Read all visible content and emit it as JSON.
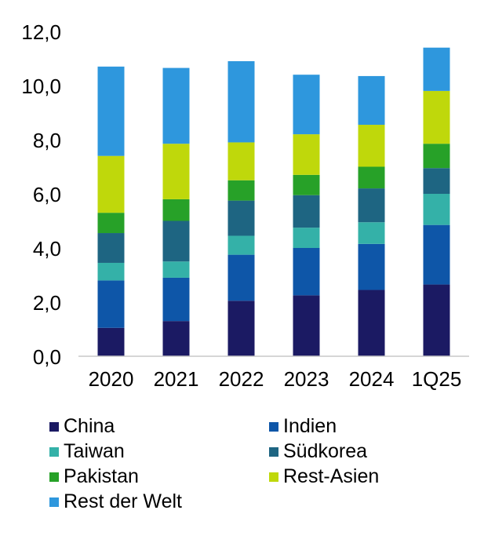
{
  "chart_data": {
    "type": "bar",
    "stacked": true,
    "categories": [
      "2020",
      "2021",
      "2022",
      "2023",
      "2024",
      "1Q25"
    ],
    "ylim": [
      0,
      12
    ],
    "yticks": [
      "0,0",
      "2,0",
      "4,0",
      "6,0",
      "8,0",
      "10,0",
      "12,0"
    ],
    "grid": false,
    "legend_position": "bottom",
    "series": [
      {
        "name": "China",
        "color": "#1b1a63",
        "values": [
          1.05,
          1.3,
          2.05,
          2.25,
          2.45,
          2.65
        ]
      },
      {
        "name": "Indien",
        "color": "#0e56a8",
        "values": [
          1.75,
          1.6,
          1.7,
          1.75,
          1.7,
          2.2
        ]
      },
      {
        "name": "Taiwan",
        "color": "#34b1a8",
        "values": [
          0.65,
          0.6,
          0.7,
          0.75,
          0.8,
          1.15
        ]
      },
      {
        "name": "Südkorea",
        "color": "#1e6582",
        "values": [
          1.1,
          1.5,
          1.3,
          1.2,
          1.25,
          0.95
        ]
      },
      {
        "name": "Pakistan",
        "color": "#27a128",
        "values": [
          0.75,
          0.8,
          0.75,
          0.75,
          0.8,
          0.9
        ]
      },
      {
        "name": "Rest-Asien",
        "color": "#bfd80b",
        "values": [
          2.1,
          2.05,
          1.4,
          1.5,
          1.55,
          1.95
        ]
      },
      {
        "name": "Rest der Welt",
        "color": "#2e97dd",
        "values": [
          3.3,
          2.8,
          3.0,
          2.2,
          1.8,
          1.6
        ]
      }
    ]
  }
}
